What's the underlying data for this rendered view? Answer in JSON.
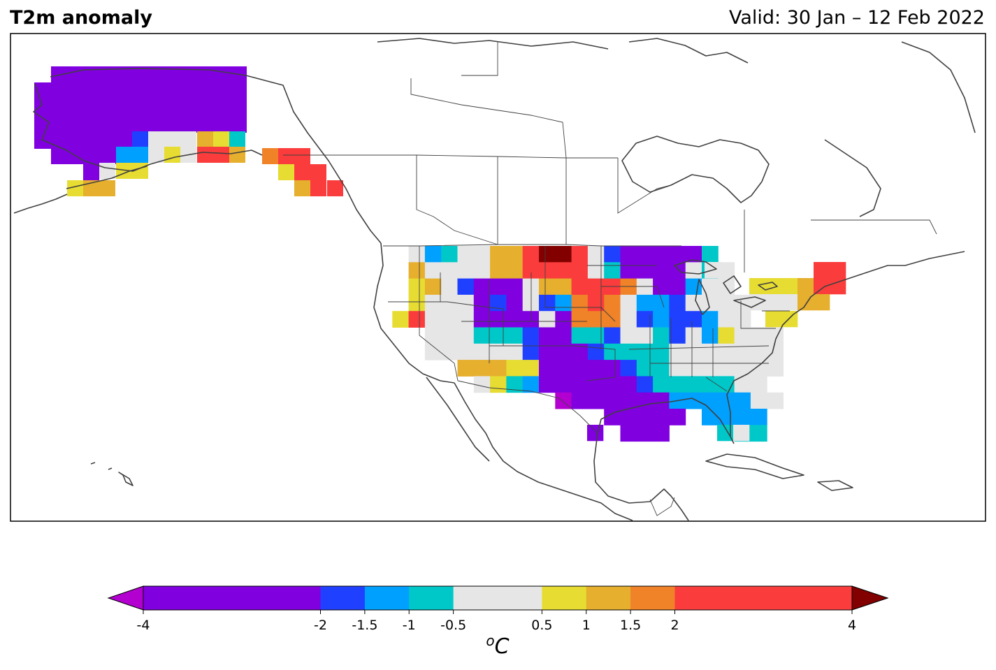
{
  "header": {
    "title": "T2m anomaly",
    "valid": "Valid: 30 Jan – 12 Feb 2022"
  },
  "colorbar": {
    "unit_base": "C",
    "unit_sup": "o",
    "ticks": [
      "-4",
      "-2",
      "-1.5",
      "-1",
      "-0.5",
      "0.5",
      "1",
      "1.5",
      "2",
      "4"
    ],
    "tick_values": [
      -4,
      -2,
      -1.5,
      -1,
      -0.5,
      0.5,
      1,
      1.5,
      2,
      4
    ],
    "colors": {
      "under": "#b300d0",
      "b_m4_m2": "#8000e0",
      "b_m2_m15": "#2040ff",
      "b_m15_m1": "#00a0ff",
      "b_m1_m05": "#00c8c8",
      "b_m05_05": "#e6e6e6",
      "b_05_1": "#e6dc32",
      "b_1_15": "#e6af2d",
      "b_15_2": "#f08228",
      "b_2_4": "#fa3c3c",
      "over": "#820000"
    }
  },
  "map": {
    "extent_note": "North America",
    "coastline_color": "#404040",
    "border_color": "#404040"
  }
}
